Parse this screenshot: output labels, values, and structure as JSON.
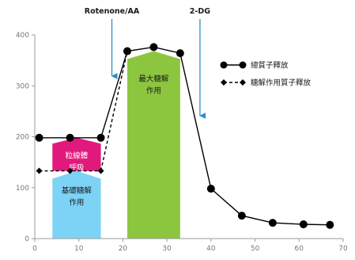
{
  "chart_data": {
    "type": "line",
    "xlim": [
      0,
      70
    ],
    "ylim": [
      0,
      400
    ],
    "xticks": [
      0,
      10,
      20,
      30,
      40,
      50,
      60,
      70
    ],
    "yticks": [
      0,
      100,
      200,
      300,
      400
    ],
    "series": [
      {
        "name": "總質子釋放",
        "style": "solid",
        "marker": "circle",
        "color": "#000000",
        "x": [
          1,
          8,
          15,
          21,
          27,
          33,
          40,
          47,
          54,
          61,
          67
        ],
        "y": [
          198,
          198,
          198,
          368,
          376,
          364,
          98,
          45,
          31,
          28,
          27
        ]
      },
      {
        "name": "糖解作用質子釋放",
        "style": "dashed",
        "marker": "diamond",
        "color": "#000000",
        "x": [
          1,
          8,
          15
        ],
        "y": [
          133,
          133,
          133
        ],
        "connector": {
          "x": [
            15,
            21
          ],
          "y": [
            133,
            368
          ]
        }
      }
    ],
    "regions": [
      {
        "label_lines": [
          "粒線體",
          "呼吸"
        ],
        "color": "#e2197c",
        "x": [
          4,
          15
        ],
        "y": [
          133,
          198
        ],
        "shape": "pentagon",
        "text_color": "#ffffff"
      },
      {
        "label_lines": [
          "基礎糖解",
          "作用"
        ],
        "color": "#7dd3f6",
        "x": [
          4,
          15
        ],
        "y": [
          0,
          133
        ],
        "shape": "pentagon",
        "text_color": "#1a1a1a"
      },
      {
        "label_lines": [
          "最大糖解",
          "作用"
        ],
        "color": "#8cc63f",
        "x": [
          21,
          33
        ],
        "y": [
          0,
          368
        ],
        "shape": "pentagon",
        "text_color": "#1a1a1a"
      }
    ],
    "injections": [
      {
        "label": "Rotenone/AA",
        "x": 17.5,
        "color": "#2a8fc7"
      },
      {
        "label": "2-DG",
        "x": 37.5,
        "color": "#2a8fc7"
      }
    ],
    "legend_position": "top-right",
    "grid": false
  }
}
